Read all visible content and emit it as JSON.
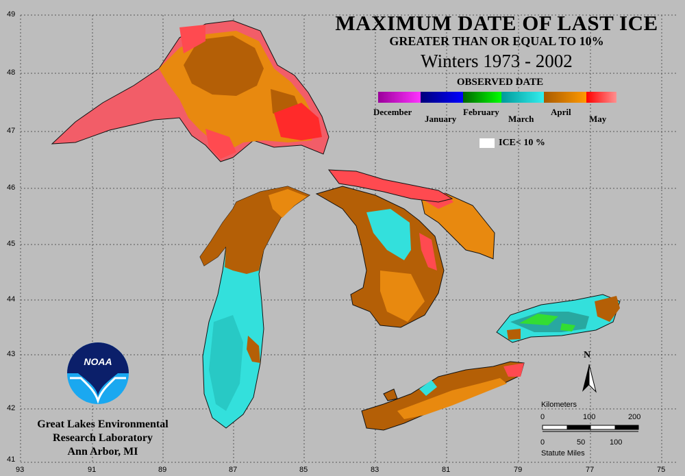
{
  "title": {
    "line1": "MAXIMUM DATE OF LAST ICE",
    "line2": "GREATER THAN OR EQUAL TO 10%",
    "line3": "Winters 1973 - 2002"
  },
  "legend": {
    "heading": "OBSERVED DATE",
    "segments": [
      {
        "label": "December",
        "color_start": "#9a009a",
        "color_end": "#ff33ff"
      },
      {
        "label": "January",
        "color_start": "#00007a",
        "color_end": "#0000ff"
      },
      {
        "label": "February",
        "color_start": "#006600",
        "color_end": "#00ff00"
      },
      {
        "label": "March",
        "color_start": "#009a9a",
        "color_end": "#33eeee"
      },
      {
        "label": "April",
        "color_start": "#a85a00",
        "color_end": "#ff9a00"
      },
      {
        "label": "May",
        "color_start": "#ff0000",
        "color_end": "#ff9090"
      }
    ],
    "ice_label": "ICE< 10 %",
    "ice_color": "#ffffff"
  },
  "grid": {
    "lon_ticks": [
      "93",
      "91",
      "89",
      "87",
      "85",
      "83",
      "81",
      "79",
      "77",
      "75"
    ],
    "lat_ticks": [
      "49",
      "48",
      "47",
      "46",
      "45",
      "44",
      "43",
      "42",
      "41"
    ]
  },
  "north_arrow": {
    "label": "N"
  },
  "scale_bar": {
    "km_label": "Kilometers",
    "km_ticks": [
      "0",
      "100",
      "200"
    ],
    "mi_label": "Statute Miles",
    "mi_ticks": [
      "0",
      "50",
      "100"
    ]
  },
  "logo": {
    "text": "NOAA"
  },
  "institution": {
    "line1": "Great Lakes Environmental",
    "line2": "Research Laboratory",
    "line3": "Ann Arbor, MI"
  },
  "colors": {
    "background": "#bdbdbd",
    "april_dark": "#b45f06",
    "april_light": "#e8890f",
    "may_red": "#ff4a50",
    "may_pink": "#f25d68",
    "march_cyan": "#33e0dc",
    "feb_green": "#33dd33"
  }
}
